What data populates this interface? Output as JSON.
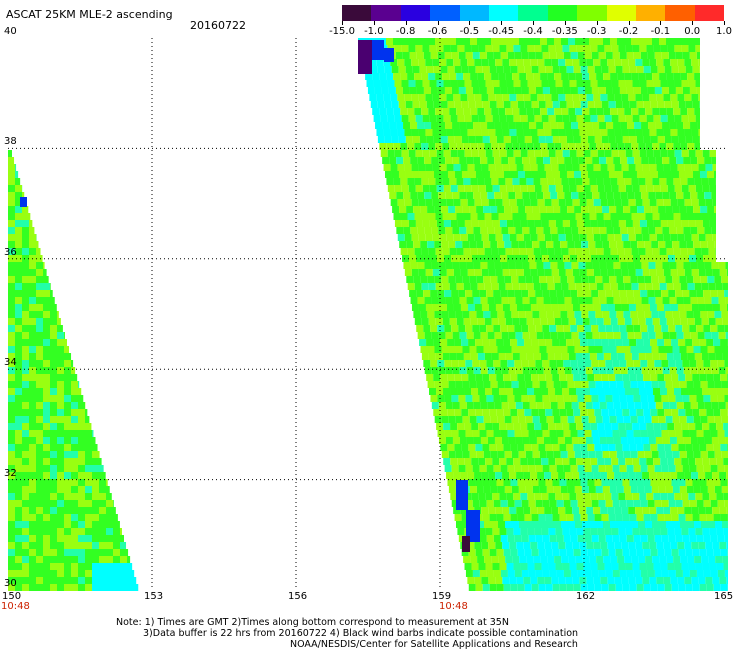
{
  "header": {
    "title": "ASCAT 25KM MLE-2 ascending",
    "date": "20160722"
  },
  "colorbar": {
    "labels": [
      "-15.0",
      "-1.0",
      "-0.8",
      "-0.6",
      "-0.5",
      "-0.45",
      "-0.4",
      "-0.35",
      "-0.3",
      "-0.2",
      "-0.1",
      "0.0",
      "1.0"
    ],
    "colors": [
      "#3a0a3a",
      "#5a0090",
      "#2a00e0",
      "#0060ff",
      "#00b8ff",
      "#00ffff",
      "#00ff90",
      "#22ff22",
      "#80ff00",
      "#e0ff00",
      "#ffb000",
      "#ff6000",
      "#ff2a2a"
    ]
  },
  "axes": {
    "lat_labels": [
      "40",
      "38",
      "36",
      "34",
      "32",
      "30"
    ],
    "lon_labels": [
      "150",
      "153",
      "156",
      "159",
      "162",
      "165"
    ],
    "time_labels": [
      "10:48",
      "10:48"
    ]
  },
  "map_colors": {
    "green": "#33ff22",
    "lime": "#99ff11",
    "cyan": "#00ffff",
    "teal": "#22ffaa",
    "blue": "#0033ee",
    "purple": "#4a0070",
    "dark": "#3a0a3a"
  },
  "notes": {
    "line1": "Note: 1) Times are GMT 2)Times along bottom correspond to measurement at 35N",
    "line2": "3)Data buffer is 22 hrs from 20160722 4) Black wind barbs indicate possible contamination",
    "line3": "NOAA/NESDIS/Center for Satellite Applications and Research"
  }
}
